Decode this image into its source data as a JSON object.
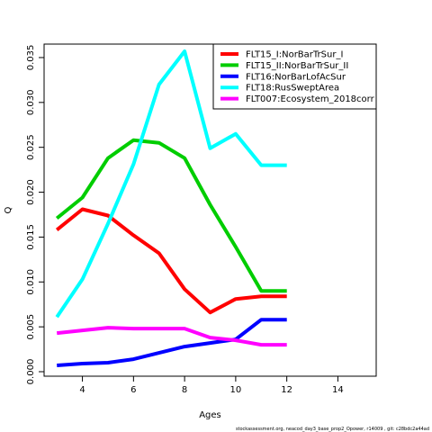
{
  "chart_data": {
    "type": "line",
    "title": "",
    "xlabel": "Ages",
    "ylabel": "Q",
    "xlim": [
      2.5,
      15.5
    ],
    "ylim": [
      -0.0005,
      0.0365
    ],
    "xticks": [
      4,
      6,
      8,
      10,
      12,
      14
    ],
    "yticks": [
      0.0,
      0.005,
      0.01,
      0.015,
      0.02,
      0.025,
      0.03,
      0.035
    ],
    "ytick_labels": [
      "0.000",
      "0.005",
      "0.010",
      "0.015",
      "0.020",
      "0.025",
      "0.030",
      "0.035"
    ],
    "grid": false,
    "legend_position": "top-right",
    "series": [
      {
        "name": "FLT15_I:NorBarTrSur_I",
        "color": "#ff0000",
        "x": [
          3,
          4,
          5,
          6,
          7,
          8,
          9,
          10,
          11,
          12
        ],
        "y": [
          0.0158,
          0.0181,
          0.0174,
          0.0152,
          0.0132,
          0.0092,
          0.0066,
          0.0081,
          0.0084,
          0.0084
        ]
      },
      {
        "name": "FLT15_II:NorBarTrSur_II",
        "color": "#00cd00",
        "x": [
          3,
          4,
          5,
          6,
          7,
          8,
          9,
          10,
          11,
          12
        ],
        "y": [
          0.0171,
          0.0194,
          0.0238,
          0.0258,
          0.0255,
          0.0238,
          0.0186,
          0.0139,
          0.009,
          0.009
        ]
      },
      {
        "name": "FLT16:NorBarLofAcSur",
        "color": "#0000ff",
        "x": [
          3,
          4,
          5,
          6,
          7,
          8,
          9,
          10,
          11,
          12
        ],
        "y": [
          0.0007,
          0.0009,
          0.001,
          0.0014,
          0.0021,
          0.0028,
          0.0032,
          0.0036,
          0.0058,
          0.0058
        ]
      },
      {
        "name": "FLT18:RusSweptArea",
        "color": "#00ffff",
        "x": [
          3,
          4,
          5,
          6,
          7,
          8,
          9,
          10,
          11,
          12
        ],
        "y": [
          0.0061,
          0.0103,
          0.0165,
          0.0231,
          0.032,
          0.0357,
          0.0249,
          0.0265,
          0.023,
          0.023
        ]
      },
      {
        "name": "FLT007:Ecosystem_2018corr",
        "color": "#ff00ff",
        "x": [
          3,
          4,
          5,
          6,
          7,
          8,
          9,
          10,
          11,
          12
        ],
        "y": [
          0.0043,
          0.0046,
          0.0049,
          0.0048,
          0.0048,
          0.0048,
          0.0038,
          0.0035,
          0.003,
          0.003
        ]
      }
    ]
  },
  "footer_text": "stockassessment.org,  neacod_day3_base_prop2_Opower,  r14009 ,  git:  c28bdc2a44ad"
}
